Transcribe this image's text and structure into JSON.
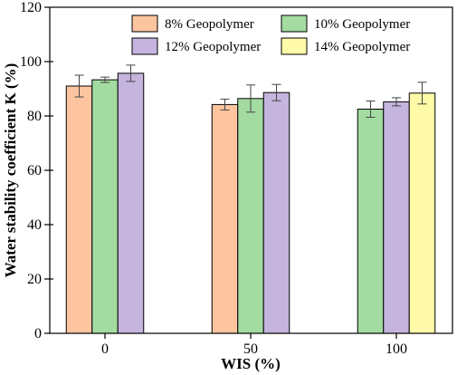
{
  "chart_data": {
    "type": "bar",
    "xlabel": "WIS (%)",
    "ylabel": "Water stability coefficient K (%)",
    "ylim": [
      0,
      120
    ],
    "yticks": [
      0,
      20,
      40,
      60,
      80,
      100,
      120
    ],
    "categories": [
      "0",
      "50",
      "100"
    ],
    "series": [
      {
        "name": "8% Geopolymer",
        "color": "#FCC59F",
        "values": [
          91.0,
          84.2,
          null
        ],
        "errors": [
          4.0,
          2.0,
          null
        ]
      },
      {
        "name": "10% Geopolymer",
        "color": "#A3DBA0",
        "values": [
          93.3,
          86.4,
          82.5
        ],
        "errors": [
          1.0,
          5.0,
          3.0
        ]
      },
      {
        "name": "12% Geopolymer",
        "color": "#C4B4DE",
        "values": [
          95.7,
          88.6,
          85.2
        ],
        "errors": [
          3.0,
          3.0,
          1.5
        ]
      },
      {
        "name": "14% Geopolymer",
        "color": "#FFFAA8",
        "values": [
          null,
          null,
          88.4
        ],
        "errors": [
          null,
          null,
          4.0
        ]
      }
    ],
    "legend_position": "top",
    "grid": false
  }
}
